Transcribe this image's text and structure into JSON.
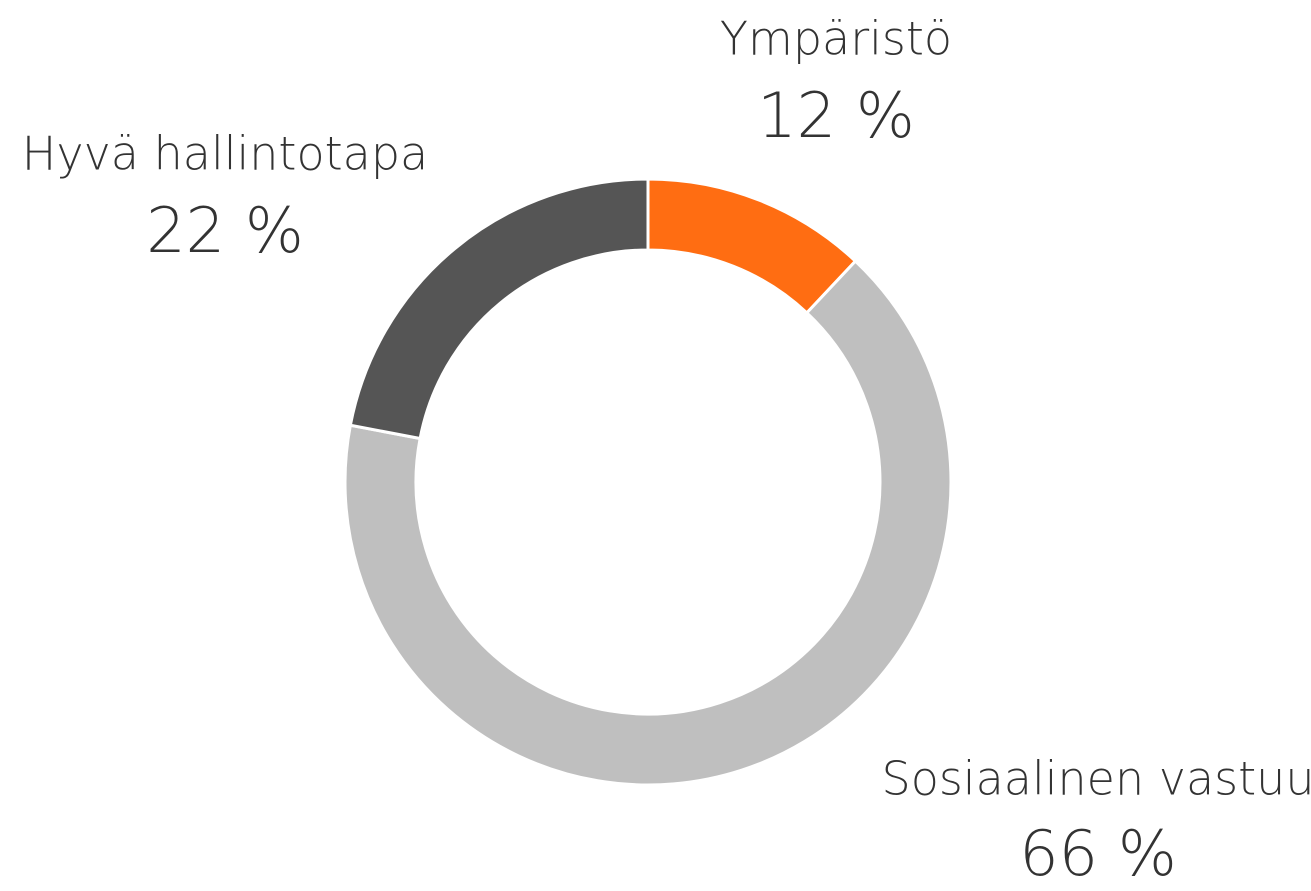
{
  "chart_data": {
    "type": "donut",
    "categories": [
      "Ympäristö",
      "Sosiaalinen vastuu",
      "Hyvä hallintotapa"
    ],
    "values": [
      12,
      66,
      22
    ],
    "value_labels": [
      "12 %",
      "66 %",
      "22 %"
    ],
    "colors": [
      "#ff6d12",
      "#bfbfbf",
      "#555555"
    ]
  }
}
